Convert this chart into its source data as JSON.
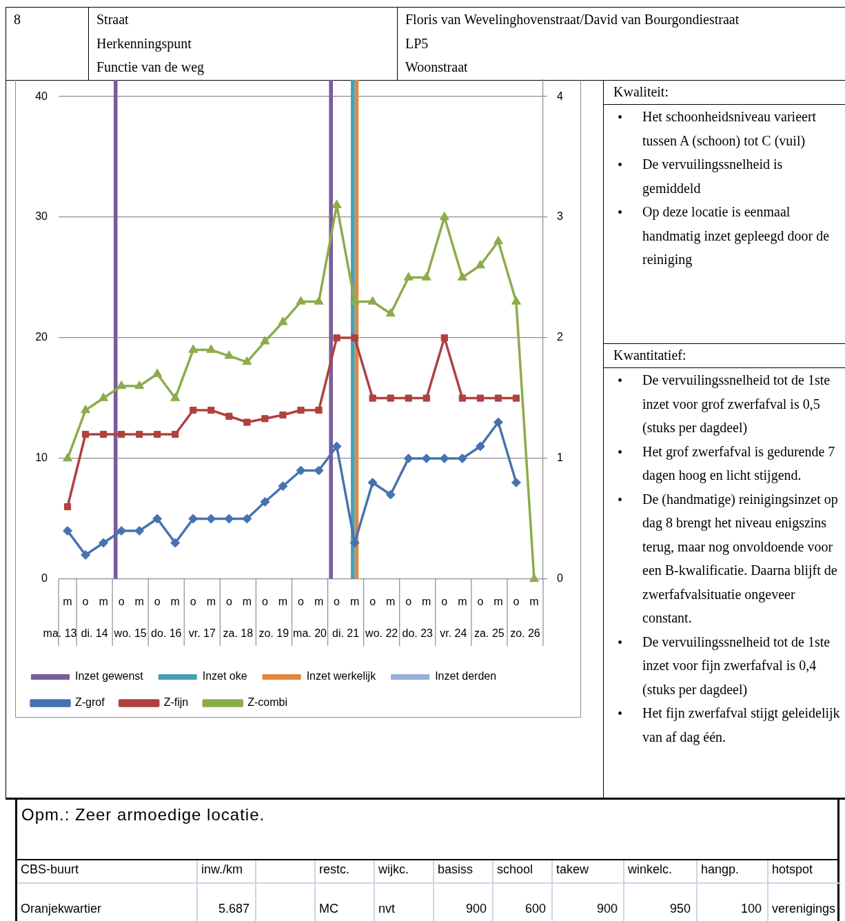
{
  "chart_data": [
    {
      "type": "other",
      "annotations": [
        "8",
        "Straat",
        "Herkenningspunt",
        "Functie van de weg",
        "Floris van Wevelinghovenstraat/David van Bourgondiestraat",
        "LP5",
        "Woonstraat"
      ]
    },
    {
      "type": "line",
      "categories": [
        "m",
        "o",
        "m",
        "o",
        "m",
        "o",
        "m",
        "o",
        "m",
        "o",
        "m",
        "o",
        "m",
        "o",
        "m",
        "o",
        "m",
        "o",
        "m",
        "o",
        "m",
        "o",
        "m",
        "o",
        "m",
        "o",
        "m"
      ],
      "annotations": [
        "ma. 13",
        "di. 14",
        "wo. 15",
        "do. 16",
        "vr. 17",
        "za. 18",
        "zo. 19",
        "ma. 20",
        "di. 21",
        "wo. 22",
        "do. 23",
        "vr. 24",
        "za. 25",
        "zo. 26"
      ],
      "series": [
        {
          "name": "Inzet gewenst",
          "type": "bar",
          "axis": "y2",
          "color": "#7a5c9c",
          "values": [
            null,
            null,
            null,
            4.14,
            null,
            null,
            null,
            null,
            null,
            null,
            null,
            null,
            null,
            null,
            null,
            4.14,
            null,
            null,
            null,
            null,
            null,
            null,
            null,
            null,
            null,
            null,
            null
          ]
        },
        {
          "name": "Inzet oke",
          "type": "bar",
          "axis": "y2",
          "color": "#45a0b8",
          "values": [
            null,
            null,
            null,
            null,
            null,
            null,
            null,
            null,
            null,
            null,
            null,
            null,
            null,
            null,
            null,
            null,
            4.14,
            null,
            null,
            null,
            null,
            null,
            null,
            null,
            null,
            null,
            null
          ]
        },
        {
          "name": "Inzet werkelijk",
          "type": "bar",
          "axis": "y2",
          "color": "#e3873a",
          "values": [
            null,
            null,
            null,
            null,
            null,
            null,
            null,
            null,
            null,
            null,
            null,
            null,
            null,
            null,
            null,
            null,
            4.14,
            null,
            null,
            null,
            null,
            null,
            null,
            null,
            null,
            null,
            null
          ]
        },
        {
          "name": "Inzet derden",
          "type": "bar",
          "axis": "y2",
          "color": "#97aed8",
          "values": [
            null,
            null,
            null,
            null,
            null,
            null,
            null,
            null,
            null,
            null,
            null,
            null,
            null,
            null,
            null,
            null,
            null,
            null,
            null,
            null,
            null,
            null,
            null,
            null,
            null,
            null,
            null
          ]
        },
        {
          "name": "Z-grof",
          "color": "#4673b0",
          "marker": "diamond",
          "values": [
            4,
            2,
            3,
            4,
            4,
            5,
            3,
            5,
            5,
            5,
            5,
            6.4,
            7.7,
            9,
            9,
            11,
            3,
            8,
            7,
            10,
            10,
            10,
            10,
            11,
            13,
            8,
            null
          ]
        },
        {
          "name": "Z-fijn",
          "color": "#b0413e",
          "marker": "square",
          "values": [
            6,
            12,
            12,
            12,
            12,
            12,
            12,
            14,
            14,
            13.5,
            13,
            13.3,
            13.6,
            14,
            14,
            20,
            20,
            15,
            15,
            15,
            15,
            20,
            15,
            15,
            15,
            15,
            null
          ]
        },
        {
          "name": "Z-combi",
          "color": "#8cac4b",
          "marker": "triangle",
          "values": [
            10,
            14,
            15,
            16,
            16,
            17,
            15,
            19,
            19,
            18.5,
            18,
            19.7,
            21.3,
            23,
            23,
            31,
            23,
            23,
            22,
            25,
            25,
            30,
            25,
            26,
            28,
            23,
            0
          ]
        }
      ],
      "ylim": [
        0,
        41.4
      ],
      "yticks": [
        0,
        10,
        20,
        30,
        40
      ],
      "y2lim": [
        0,
        4.14
      ],
      "y2ticks": [
        0,
        1,
        2,
        3,
        4
      ],
      "grid": "y",
      "legend": "bottom"
    },
    {
      "type": "other",
      "title": "Kwaliteit:",
      "annotations": [
        "• Het schoonheidsniveau varieert tussen A (schoon) tot C (vuil)",
        "• De vervuilingssnelheid is gemiddeld",
        "• Op deze locatie is eenmaal handmatig inzet gepleegd door de reiniging"
      ]
    },
    {
      "type": "other",
      "title": "Kwantitatief:",
      "annotations": [
        "• De vervuilingssnelheid tot de 1ste inzet voor grof zwerfafval is 0,5 (stuks per dagdeel)",
        "• Het grof zwerfafval is gedurende 7 dagen hoog en licht stijgend.",
        "• De (handmatige) reinigingsinzet op dag 8 brengt het niveau enigszins terug, maar nog onvoldoende voor een B-kwalificatie. Daarna blijft de zwerfafvalsituatie ongeveer constant.",
        "• De vervuilingssnelheid tot de 1ste inzet voor fijn zwerfafval is 0,4 (stuks per dagdeel)",
        "• Het fijn zwerfafval stijgt geleidelijk van af dag één."
      ]
    },
    {
      "type": "other",
      "title": "Opm.: Zeer armoedige locatie.",
      "annotations": [
        "CBS-buurt",
        "inw./km",
        "restc.",
        "wijkc.",
        "basiss",
        "school",
        "takew",
        "winkelc.",
        "hangp.",
        "hotspot",
        "Oranjekwartier",
        "5.687",
        "MC",
        "nvt",
        "900",
        "600",
        "900",
        "950",
        "100",
        "verenigings"
      ]
    }
  ]
}
